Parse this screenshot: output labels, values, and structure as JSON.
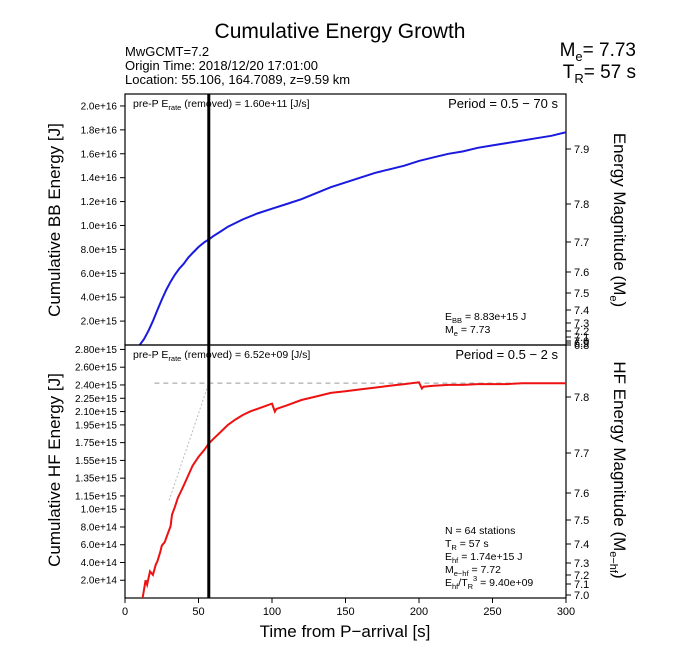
{
  "header": {
    "title": "Cumulative Energy Growth",
    "event_line": "MwGCMT=7.2",
    "origin_line": "Origin Time: 2018/12/20 17:01:00",
    "location_line": "Location: 55.106, 164.7089, z=9.59 km",
    "me_label": "M",
    "me_sub": "e",
    "me_value": "= 7.73",
    "tr_label": "T",
    "tr_sub": "R",
    "tr_value": "= 57 s"
  },
  "chart_data": [
    {
      "type": "line",
      "panel": "top",
      "ylabel": "Cumulative BB Energy [J]",
      "y2label": "Energy Magnitude (M",
      "y2label_sub": "e",
      "y2label_end": ")",
      "xlim": [
        0,
        300
      ],
      "ylim": [
        0,
        2.1e+16
      ],
      "yticks": [
        2000000000000000.0,
        4000000000000000.0,
        6000000000000000.0,
        8000000000000000.0,
        1e+16,
        1.2e+16,
        1.4e+16,
        1.6e+16,
        1.8e+16,
        2e+16
      ],
      "yticklabels": [
        "2.0e+15",
        "4.0e+15",
        "6.0e+15",
        "8.0e+15",
        "1.0e+16",
        "1.2e+16",
        "1.4e+16",
        "1.6e+16",
        "1.8e+16",
        "2.0e+16"
      ],
      "y2ticks": [
        6.8,
        6.9,
        7.0,
        7.1,
        7.2,
        7.3,
        7.4,
        7.5,
        7.6,
        7.7,
        7.8,
        7.9
      ],
      "y2ticklabels": [
        "6.8",
        "6.9",
        "7.0",
        "7.1",
        "7.2",
        "7.3",
        "7.4",
        "7.5",
        "7.6",
        "7.7",
        "7.8",
        "7.9"
      ],
      "color": "#1a1adf",
      "x": [
        10,
        13,
        16,
        19,
        22,
        25,
        28,
        31,
        34,
        37,
        40,
        43,
        46,
        50,
        54,
        57,
        60,
        65,
        70,
        80,
        90,
        100,
        110,
        120,
        130,
        140,
        150,
        160,
        170,
        180,
        190,
        200,
        210,
        220,
        230,
        240,
        250,
        260,
        270,
        280,
        290,
        300
      ],
      "y": [
        0,
        500000000000000.0,
        1200000000000000.0,
        2000000000000000.0,
        2900000000000000.0,
        3800000000000000.0,
        4600000000000000.0,
        5300000000000000.0,
        5900000000000000.0,
        6400000000000000.0,
        6800000000000000.0,
        7300000000000000.0,
        7700000000000000.0,
        8200000000000000.0,
        8600000000000000.0,
        8830000000000000.0,
        9100000000000000.0,
        9500000000000000.0,
        9900000000000000.0,
        1.05e+16,
        1.1e+16,
        1.14e+16,
        1.18e+16,
        1.22e+16,
        1.27e+16,
        1.32e+16,
        1.36e+16,
        1.4e+16,
        1.44e+16,
        1.47e+16,
        1.5e+16,
        1.54e+16,
        1.57e+16,
        1.6e+16,
        1.62e+16,
        1.65e+16,
        1.67e+16,
        1.69e+16,
        1.71e+16,
        1.73e+16,
        1.75e+16,
        1.78e+16
      ],
      "annotations": {
        "pre_p_label": "pre-P E",
        "pre_p_sub": "rate",
        "pre_p_value": " (removed) = 1.60e+11 [J/s]",
        "period": "Period = 0.5 − 70 s",
        "ebb_label": "E",
        "ebb_sub": "BB",
        "ebb_value": " = 8.83e+15 J",
        "me_label": "M",
        "me_sub": "e",
        "me_value": " = 7.73"
      }
    },
    {
      "type": "line",
      "panel": "bottom",
      "xlabel": "Time from P−arrival [s]",
      "ylabel": "Cumulative HF Energy [J]",
      "y2label": "HF Energy Magnitude (M",
      "y2label_sub": "e−hf",
      "y2label_end": ")",
      "xlim": [
        0,
        300
      ],
      "xticks": [
        0,
        50,
        100,
        150,
        200,
        250,
        300
      ],
      "xticklabels": [
        "0",
        "50",
        "100",
        "150",
        "200",
        "250",
        "300"
      ],
      "ylim": [
        0,
        2850000000000000.0
      ],
      "yticks": [
        200000000000000.0,
        400000000000000.0,
        600000000000000.0,
        800000000000000.0,
        1000000000000000.0,
        1150000000000000.0,
        1350000000000000.0,
        1550000000000000.0,
        1750000000000000.0,
        1950000000000000.0,
        2100000000000000.0,
        2250000000000000.0,
        2400000000000000.0,
        2600000000000000.0,
        2800000000000000.0
      ],
      "yticklabels": [
        "2.0e+14",
        "4.0e+14",
        "6.0e+14",
        "8.0e+14",
        "1.0e+15",
        "1.15e+15",
        "1.35e+15",
        "1.55e+15",
        "1.75e+15",
        "1.95e+15",
        "2.10e+15",
        "2.25e+15",
        "2.40e+15",
        "2.60e+15",
        "2.80e+15"
      ],
      "y2ticks": [
        7.0,
        7.1,
        7.2,
        7.3,
        7.4,
        7.5,
        7.6,
        7.7,
        7.8
      ],
      "y2ticklabels": [
        "7.0",
        "7.1",
        "7.2",
        "7.3",
        "7.4",
        "7.5",
        "7.6",
        "7.7",
        "7.8"
      ],
      "color": "#ee1111",
      "x": [
        12,
        14,
        15,
        17,
        19,
        21,
        22,
        24,
        25,
        27,
        29,
        31,
        32,
        34,
        36,
        38,
        40,
        43,
        46,
        50,
        54,
        57,
        60,
        65,
        70,
        75,
        80,
        85,
        90,
        95,
        100,
        102,
        103,
        110,
        120,
        130,
        140,
        150,
        160,
        170,
        180,
        190,
        200,
        202,
        203,
        210,
        220,
        230,
        240,
        250,
        260,
        270,
        280,
        290,
        300
      ],
      "y": [
        0,
        200000000000000.0,
        150000000000000.0,
        300000000000000.0,
        260000000000000.0,
        380000000000000.0,
        410000000000000.0,
        520000000000000.0,
        590000000000000.0,
        630000000000000.0,
        720000000000000.0,
        810000000000000.0,
        940000000000000.0,
        1030000000000000.0,
        1130000000000000.0,
        1200000000000000.0,
        1270000000000000.0,
        1380000000000000.0,
        1490000000000000.0,
        1590000000000000.0,
        1670000000000000.0,
        1740000000000000.0,
        1790000000000000.0,
        1870000000000000.0,
        1950000000000000.0,
        2010000000000000.0,
        2060000000000000.0,
        2100000000000000.0,
        2130000000000000.0,
        2160000000000000.0,
        2190000000000000.0,
        2100000000000000.0,
        2130000000000000.0,
        2170000000000000.0,
        2230000000000000.0,
        2270000000000000.0,
        2310000000000000.0,
        2330000000000000.0,
        2350000000000000.0,
        2370000000000000.0,
        2390000000000000.0,
        2410000000000000.0,
        2430000000000000.0,
        2360000000000000.0,
        2380000000000000.0,
        2390000000000000.0,
        2400000000000000.0,
        2400000000000000.0,
        2410000000000000.0,
        2410000000000000.0,
        2410000000000000.0,
        2420000000000000.0,
        2420000000000000.0,
        2420000000000000.0,
        2420000000000000.0
      ],
      "plateau_y": 2420000000000000.0,
      "annotations": {
        "pre_p_label": "pre-P E",
        "pre_p_sub": "rate",
        "pre_p_value": " (removed) = 6.52e+09 [J/s]",
        "period": "Period = 0.5 − 2 s",
        "stations": "N = 64 stations",
        "tr_label": "T",
        "tr_sub": "R",
        "tr_value": " = 57  s",
        "ehf_label": "E",
        "ehf_sub": "hf",
        "ehf_value": " = 1.74e+15 J",
        "mehf_label": "M",
        "mehf_sub": "e−hf",
        "mehf_value": " = 7.72",
        "ratio_label": "E",
        "ratio_sub": "hf",
        "ratio_mid": "/T",
        "ratio_sub2": "R",
        "ratio_sup": "3",
        "ratio_value": " =  9.40e+09"
      }
    }
  ],
  "tr_marker_x": 57
}
